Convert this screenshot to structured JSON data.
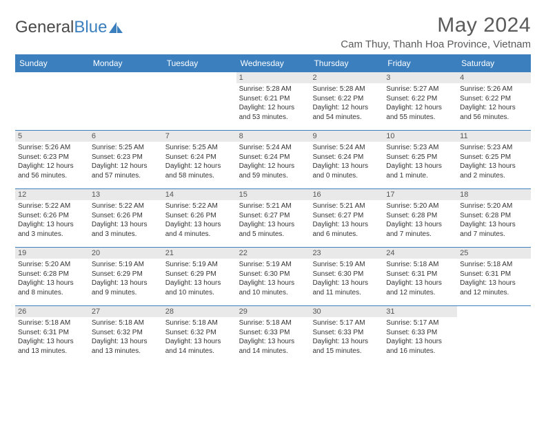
{
  "logo": {
    "part1": "General",
    "part2": "Blue"
  },
  "title": "May 2024",
  "location": "Cam Thuy, Thanh Hoa Province, Vietnam",
  "colors": {
    "header_bg": "#3b7fbf",
    "daynum_bg": "#e9e9e9",
    "text": "#333333",
    "title_text": "#5a5a5a",
    "week_border": "#3b7fbf"
  },
  "day_names": [
    "Sunday",
    "Monday",
    "Tuesday",
    "Wednesday",
    "Thursday",
    "Friday",
    "Saturday"
  ],
  "weeks": [
    [
      {
        "n": "",
        "sr": "",
        "ss": "",
        "dl1": "",
        "dl2": ""
      },
      {
        "n": "",
        "sr": "",
        "ss": "",
        "dl1": "",
        "dl2": ""
      },
      {
        "n": "",
        "sr": "",
        "ss": "",
        "dl1": "",
        "dl2": ""
      },
      {
        "n": "1",
        "sr": "Sunrise: 5:28 AM",
        "ss": "Sunset: 6:21 PM",
        "dl1": "Daylight: 12 hours",
        "dl2": "and 53 minutes."
      },
      {
        "n": "2",
        "sr": "Sunrise: 5:28 AM",
        "ss": "Sunset: 6:22 PM",
        "dl1": "Daylight: 12 hours",
        "dl2": "and 54 minutes."
      },
      {
        "n": "3",
        "sr": "Sunrise: 5:27 AM",
        "ss": "Sunset: 6:22 PM",
        "dl1": "Daylight: 12 hours",
        "dl2": "and 55 minutes."
      },
      {
        "n": "4",
        "sr": "Sunrise: 5:26 AM",
        "ss": "Sunset: 6:22 PM",
        "dl1": "Daylight: 12 hours",
        "dl2": "and 56 minutes."
      }
    ],
    [
      {
        "n": "5",
        "sr": "Sunrise: 5:26 AM",
        "ss": "Sunset: 6:23 PM",
        "dl1": "Daylight: 12 hours",
        "dl2": "and 56 minutes."
      },
      {
        "n": "6",
        "sr": "Sunrise: 5:25 AM",
        "ss": "Sunset: 6:23 PM",
        "dl1": "Daylight: 12 hours",
        "dl2": "and 57 minutes."
      },
      {
        "n": "7",
        "sr": "Sunrise: 5:25 AM",
        "ss": "Sunset: 6:24 PM",
        "dl1": "Daylight: 12 hours",
        "dl2": "and 58 minutes."
      },
      {
        "n": "8",
        "sr": "Sunrise: 5:24 AM",
        "ss": "Sunset: 6:24 PM",
        "dl1": "Daylight: 12 hours",
        "dl2": "and 59 minutes."
      },
      {
        "n": "9",
        "sr": "Sunrise: 5:24 AM",
        "ss": "Sunset: 6:24 PM",
        "dl1": "Daylight: 13 hours",
        "dl2": "and 0 minutes."
      },
      {
        "n": "10",
        "sr": "Sunrise: 5:23 AM",
        "ss": "Sunset: 6:25 PM",
        "dl1": "Daylight: 13 hours",
        "dl2": "and 1 minute."
      },
      {
        "n": "11",
        "sr": "Sunrise: 5:23 AM",
        "ss": "Sunset: 6:25 PM",
        "dl1": "Daylight: 13 hours",
        "dl2": "and 2 minutes."
      }
    ],
    [
      {
        "n": "12",
        "sr": "Sunrise: 5:22 AM",
        "ss": "Sunset: 6:26 PM",
        "dl1": "Daylight: 13 hours",
        "dl2": "and 3 minutes."
      },
      {
        "n": "13",
        "sr": "Sunrise: 5:22 AM",
        "ss": "Sunset: 6:26 PM",
        "dl1": "Daylight: 13 hours",
        "dl2": "and 3 minutes."
      },
      {
        "n": "14",
        "sr": "Sunrise: 5:22 AM",
        "ss": "Sunset: 6:26 PM",
        "dl1": "Daylight: 13 hours",
        "dl2": "and 4 minutes."
      },
      {
        "n": "15",
        "sr": "Sunrise: 5:21 AM",
        "ss": "Sunset: 6:27 PM",
        "dl1": "Daylight: 13 hours",
        "dl2": "and 5 minutes."
      },
      {
        "n": "16",
        "sr": "Sunrise: 5:21 AM",
        "ss": "Sunset: 6:27 PM",
        "dl1": "Daylight: 13 hours",
        "dl2": "and 6 minutes."
      },
      {
        "n": "17",
        "sr": "Sunrise: 5:20 AM",
        "ss": "Sunset: 6:28 PM",
        "dl1": "Daylight: 13 hours",
        "dl2": "and 7 minutes."
      },
      {
        "n": "18",
        "sr": "Sunrise: 5:20 AM",
        "ss": "Sunset: 6:28 PM",
        "dl1": "Daylight: 13 hours",
        "dl2": "and 7 minutes."
      }
    ],
    [
      {
        "n": "19",
        "sr": "Sunrise: 5:20 AM",
        "ss": "Sunset: 6:28 PM",
        "dl1": "Daylight: 13 hours",
        "dl2": "and 8 minutes."
      },
      {
        "n": "20",
        "sr": "Sunrise: 5:19 AM",
        "ss": "Sunset: 6:29 PM",
        "dl1": "Daylight: 13 hours",
        "dl2": "and 9 minutes."
      },
      {
        "n": "21",
        "sr": "Sunrise: 5:19 AM",
        "ss": "Sunset: 6:29 PM",
        "dl1": "Daylight: 13 hours",
        "dl2": "and 10 minutes."
      },
      {
        "n": "22",
        "sr": "Sunrise: 5:19 AM",
        "ss": "Sunset: 6:30 PM",
        "dl1": "Daylight: 13 hours",
        "dl2": "and 10 minutes."
      },
      {
        "n": "23",
        "sr": "Sunrise: 5:19 AM",
        "ss": "Sunset: 6:30 PM",
        "dl1": "Daylight: 13 hours",
        "dl2": "and 11 minutes."
      },
      {
        "n": "24",
        "sr": "Sunrise: 5:18 AM",
        "ss": "Sunset: 6:31 PM",
        "dl1": "Daylight: 13 hours",
        "dl2": "and 12 minutes."
      },
      {
        "n": "25",
        "sr": "Sunrise: 5:18 AM",
        "ss": "Sunset: 6:31 PM",
        "dl1": "Daylight: 13 hours",
        "dl2": "and 12 minutes."
      }
    ],
    [
      {
        "n": "26",
        "sr": "Sunrise: 5:18 AM",
        "ss": "Sunset: 6:31 PM",
        "dl1": "Daylight: 13 hours",
        "dl2": "and 13 minutes."
      },
      {
        "n": "27",
        "sr": "Sunrise: 5:18 AM",
        "ss": "Sunset: 6:32 PM",
        "dl1": "Daylight: 13 hours",
        "dl2": "and 13 minutes."
      },
      {
        "n": "28",
        "sr": "Sunrise: 5:18 AM",
        "ss": "Sunset: 6:32 PM",
        "dl1": "Daylight: 13 hours",
        "dl2": "and 14 minutes."
      },
      {
        "n": "29",
        "sr": "Sunrise: 5:18 AM",
        "ss": "Sunset: 6:33 PM",
        "dl1": "Daylight: 13 hours",
        "dl2": "and 14 minutes."
      },
      {
        "n": "30",
        "sr": "Sunrise: 5:17 AM",
        "ss": "Sunset: 6:33 PM",
        "dl1": "Daylight: 13 hours",
        "dl2": "and 15 minutes."
      },
      {
        "n": "31",
        "sr": "Sunrise: 5:17 AM",
        "ss": "Sunset: 6:33 PM",
        "dl1": "Daylight: 13 hours",
        "dl2": "and 16 minutes."
      },
      {
        "n": "",
        "sr": "",
        "ss": "",
        "dl1": "",
        "dl2": ""
      }
    ]
  ]
}
